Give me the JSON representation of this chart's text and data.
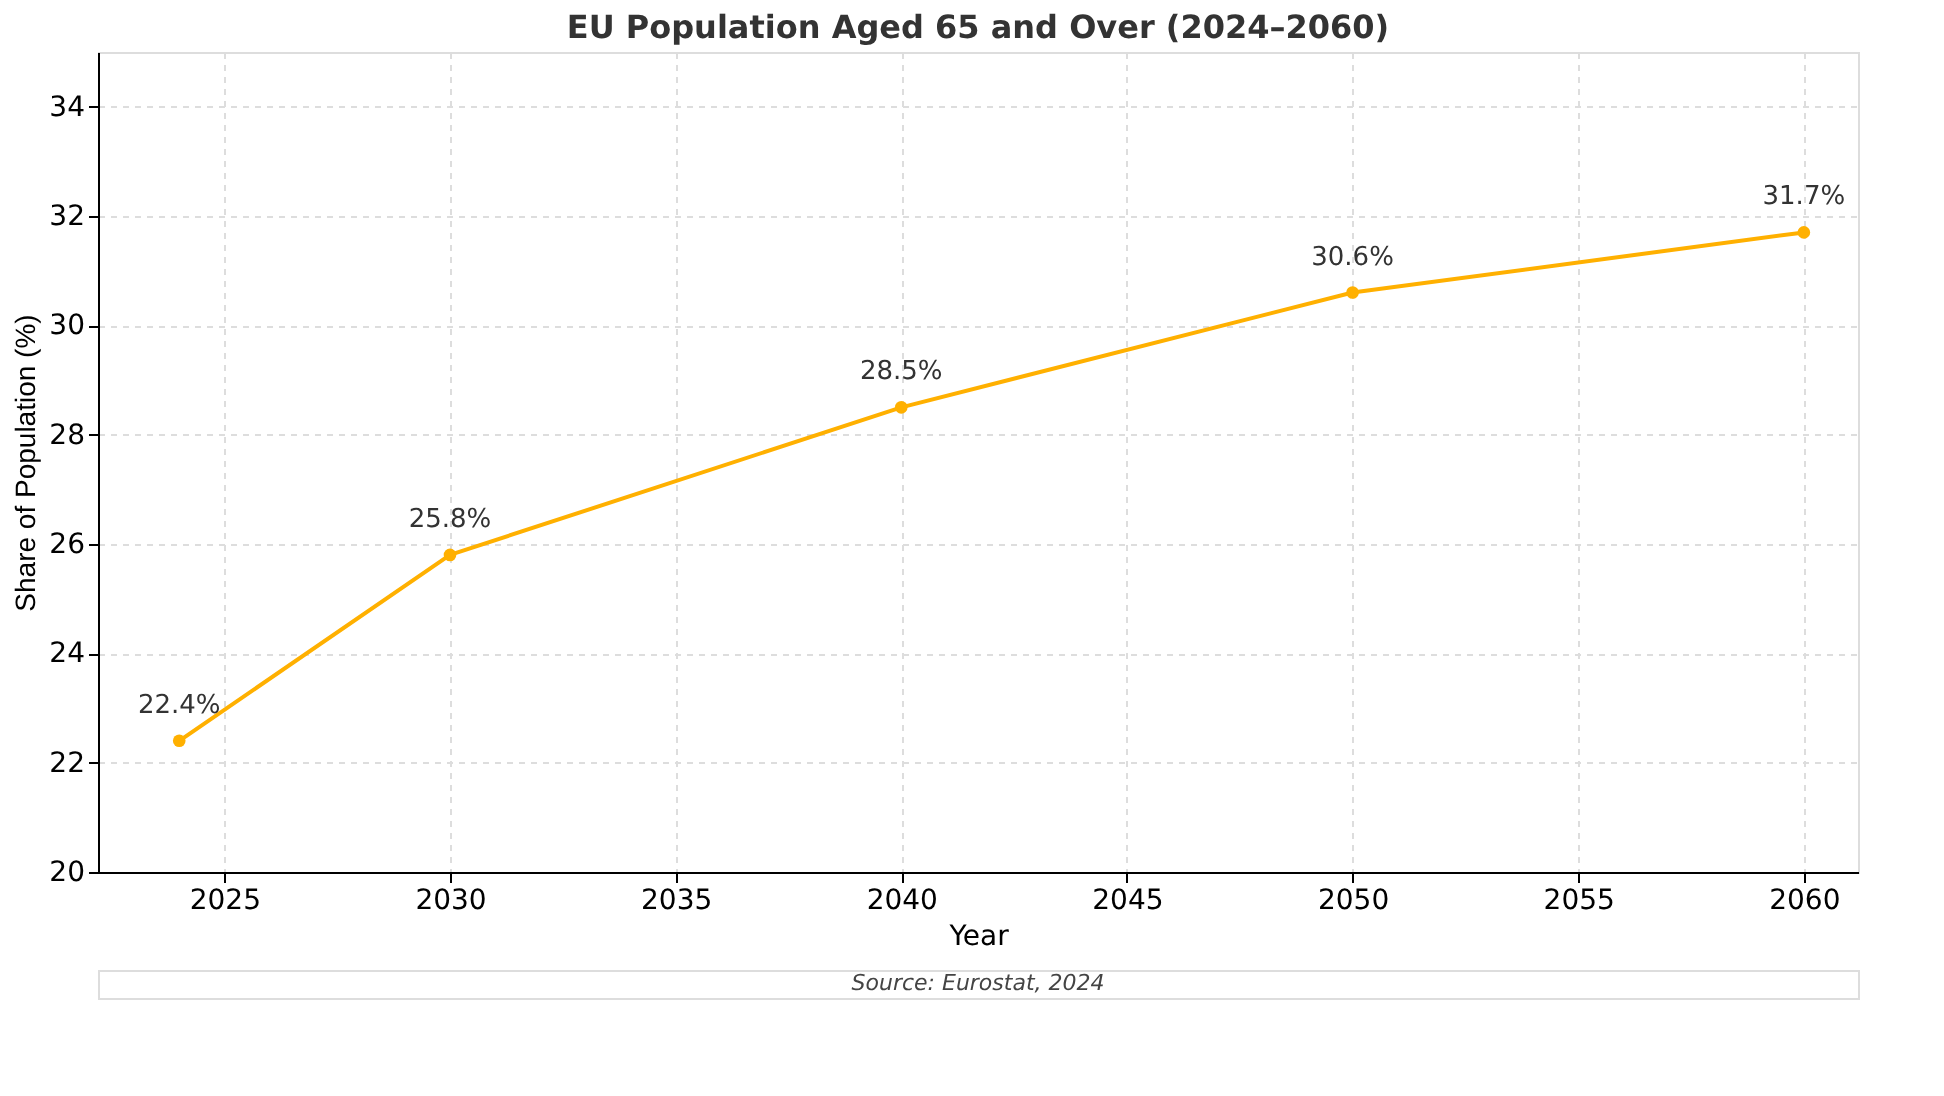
{
  "chart_data": {
    "type": "line",
    "title": "EU Population Aged 65 and Over (2024–2060)",
    "xlabel": "Year",
    "ylabel": "Share of Population (%)",
    "x": [
      2024,
      2030,
      2040,
      2050,
      2060
    ],
    "series": [
      {
        "color": "#ffb000",
        "values": [
          22.4,
          25.8,
          28.5,
          30.6,
          31.7
        ],
        "value_labels": [
          "22.4%",
          "25.8%",
          "28.5%",
          "30.6%",
          "31.7%"
        ]
      }
    ],
    "xlim": [
      2022.2,
      2061.2
    ],
    "xticks": [
      2025,
      2030,
      2035,
      2040,
      2045,
      2050,
      2055,
      2060
    ],
    "ylim": [
      20,
      35
    ],
    "yticks": [
      20,
      22,
      24,
      26,
      28,
      30,
      32,
      34
    ],
    "grid": true,
    "marker": "circle",
    "line_style": "solid",
    "annotations": [
      "Source: Eurostat, 2024"
    ]
  }
}
